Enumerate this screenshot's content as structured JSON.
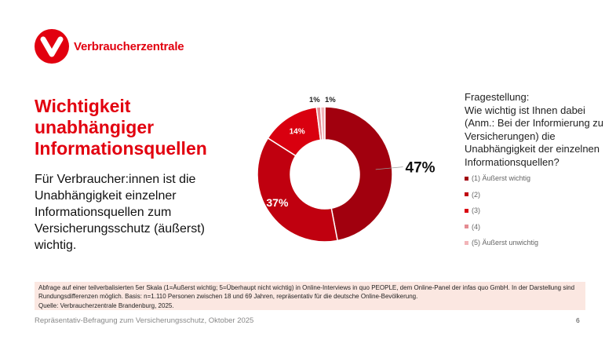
{
  "logo": {
    "text": "Verbraucherzentrale",
    "color": "#e2000f"
  },
  "title": "Wichtigkeit unabhängiger Informationsquellen",
  "subtitle": "Für Verbraucher:innen ist die Unabhängigkeit einzelner Informationsquellen zum Versicherungsschutz (äußerst) wichtig.",
  "question": {
    "label": "Fragestellung:",
    "text": "Wie wichtig ist Ihnen dabei (Anm.: Bei der Informierung zu Versicherungen) die Unabhängigkeit der einzelnen Informationsquellen?"
  },
  "chart_data": {
    "type": "pie",
    "donut": true,
    "categories": [
      "(1) Äußerst wichtig",
      "(2)",
      "(3)",
      "(4)",
      "(5) Äußerst unwichtig"
    ],
    "values": [
      47,
      37,
      14,
      1,
      1
    ],
    "labels": [
      "47%",
      "37%",
      "14%",
      "1%",
      "1%"
    ],
    "colors": [
      "#a1000e",
      "#c0000f",
      "#d9000f",
      "#e58c92",
      "#f2b4b8"
    ],
    "legend_position": "right"
  },
  "note": {
    "line1": "Abfrage auf einer teilverbalisierten 5er Skala (1=Äußerst wichtig; 5=Überhaupt nicht wichtig) in Online-Interviews in quo PEOPLE, dem Online-Panel der infas quo GmbH. In der Darstellung sind Rundungsdifferenzen möglich. Basis: n=1.110 Personen zwischen 18 und 69 Jahren, repräsentativ für die deutsche Online-Bevölkerung.",
    "line2": "Quelle: Verbraucherzentrale Brandenburg, 2025."
  },
  "footer": "Repräsentativ-Befragung zum Versicherungsschutz, Oktober 2025",
  "page_number": "6"
}
